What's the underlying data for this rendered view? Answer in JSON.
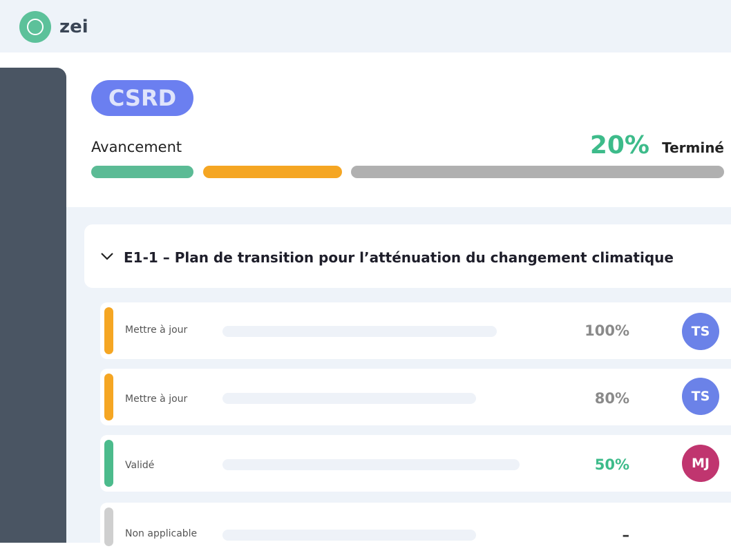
{
  "header": {
    "logo_text": "zei"
  },
  "badge": "CSRD",
  "progress": {
    "label": "Avancement",
    "percent": "20%",
    "status": "Terminé"
  },
  "section": {
    "title": "E1-1 – Plan de transition pour l’atténuation du changement climatique"
  },
  "rows": [
    {
      "status": "Mettre à jour",
      "percent": "100%",
      "assignee": "TS"
    },
    {
      "status": "Mettre à jour",
      "percent": "80%",
      "assignee": "TS"
    },
    {
      "status": "Validé",
      "percent": "50%",
      "assignee": "MJ"
    },
    {
      "status": "Non applicable",
      "percent": "–",
      "assignee": null
    }
  ]
}
